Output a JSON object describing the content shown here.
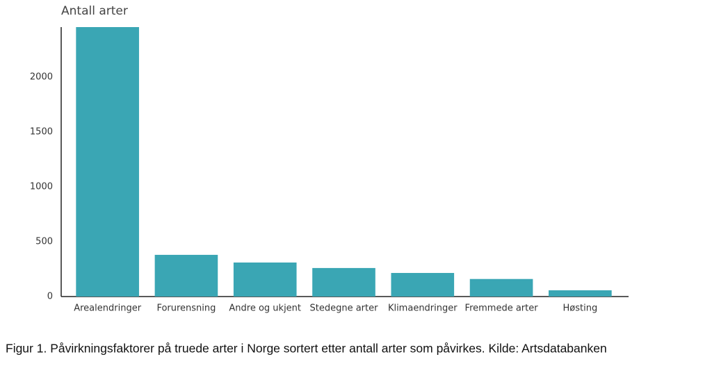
{
  "chart_data": {
    "type": "bar",
    "title": "Antall arter",
    "categories": [
      "Arealendringer",
      "Forurensning",
      "Andre og ukjent",
      "Stedegne arter",
      "Klimaendringer",
      "Fremmede arter",
      "Høsting"
    ],
    "values": [
      2455,
      380,
      310,
      260,
      215,
      160,
      57
    ],
    "color": "#3aa6b4",
    "ylim": [
      0,
      2455
    ],
    "yticks": [
      0,
      500,
      1000,
      1500,
      2000
    ],
    "grid": false,
    "caption": "Figur 1. Påvirkningsfaktorer på truede arter i Norge sortert etter antall arter som påvirkes. Kilde: Artsdatabanken"
  }
}
